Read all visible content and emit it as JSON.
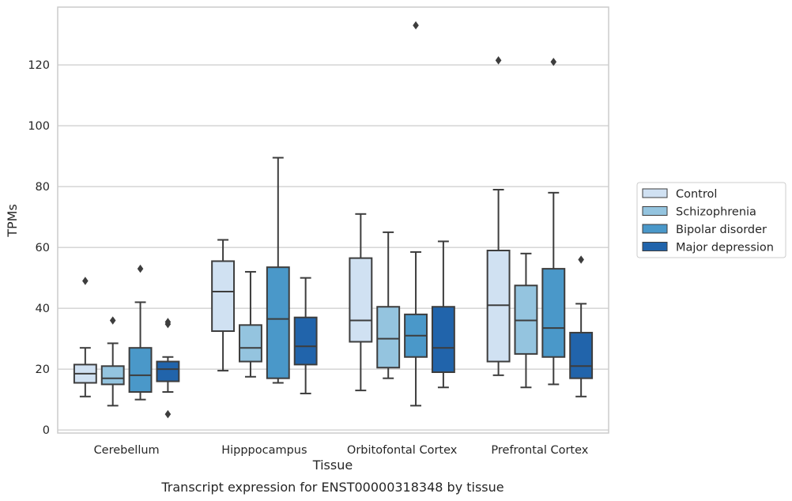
{
  "caption": "Transcript expression for ENST00000318348 by tissue",
  "chart_data": {
    "type": "box",
    "title": "",
    "xlabel": "Tissue",
    "ylabel": "TPMs",
    "ylim": [
      -1,
      139
    ],
    "yticks": [
      0,
      20,
      40,
      60,
      80,
      100,
      120
    ],
    "grid": "horizontal",
    "legend_position": "right",
    "categories": [
      "Cerebellum",
      "Hipppocampus",
      "Orbitofontal Cortex",
      "Prefrontal Cortex"
    ],
    "series": [
      {
        "name": "Control",
        "color": "#d0e1f2",
        "boxes": [
          {
            "whislo": 11,
            "q1": 15.5,
            "med": 18.5,
            "q3": 21.5,
            "whishi": 27,
            "fliers": [
              49
            ]
          },
          {
            "whislo": 19.5,
            "q1": 32.5,
            "med": 45.5,
            "q3": 55.5,
            "whishi": 62.5,
            "fliers": []
          },
          {
            "whislo": 13,
            "q1": 29,
            "med": 36,
            "q3": 56.5,
            "whishi": 71,
            "fliers": []
          },
          {
            "whislo": 18,
            "q1": 22.5,
            "med": 41,
            "q3": 59,
            "whishi": 79,
            "fliers": [
              121.5
            ]
          }
        ]
      },
      {
        "name": "Schizophrenia",
        "color": "#94c4df",
        "boxes": [
          {
            "whislo": 8,
            "q1": 15,
            "med": 17,
            "q3": 21,
            "whishi": 28.5,
            "fliers": [
              36
            ]
          },
          {
            "whislo": 17.5,
            "q1": 22.5,
            "med": 27,
            "q3": 34.5,
            "whishi": 52,
            "fliers": []
          },
          {
            "whislo": 17,
            "q1": 20.5,
            "med": 30,
            "q3": 40.5,
            "whishi": 65,
            "fliers": []
          },
          {
            "whislo": 14,
            "q1": 25,
            "med": 36,
            "q3": 47.5,
            "whishi": 58,
            "fliers": []
          }
        ]
      },
      {
        "name": "Bipolar disorder",
        "color": "#4a98c9",
        "boxes": [
          {
            "whislo": 10,
            "q1": 12.5,
            "med": 18,
            "q3": 27,
            "whishi": 42,
            "fliers": [
              53
            ]
          },
          {
            "whislo": 15.5,
            "q1": 17,
            "med": 36.5,
            "q3": 53.5,
            "whishi": 89.5,
            "fliers": []
          },
          {
            "whislo": 8,
            "q1": 24,
            "med": 31,
            "q3": 38,
            "whishi": 58.5,
            "fliers": [
              133
            ]
          },
          {
            "whislo": 15,
            "q1": 24,
            "med": 33.5,
            "q3": 53,
            "whishi": 78,
            "fliers": [
              121
            ]
          }
        ]
      },
      {
        "name": "Major depression",
        "color": "#2164ab",
        "boxes": [
          {
            "whislo": 12.5,
            "q1": 16,
            "med": 20,
            "q3": 22.5,
            "whishi": 24,
            "fliers": [
              35.5,
              34.8,
              5.2
            ]
          },
          {
            "whislo": 12,
            "q1": 21.5,
            "med": 27.5,
            "q3": 37,
            "whishi": 50,
            "fliers": []
          },
          {
            "whislo": 14,
            "q1": 19,
            "med": 27,
            "q3": 40.5,
            "whishi": 62,
            "fliers": []
          },
          {
            "whislo": 11,
            "q1": 17,
            "med": 21,
            "q3": 32,
            "whishi": 41.5,
            "fliers": [
              56
            ]
          }
        ]
      }
    ]
  }
}
